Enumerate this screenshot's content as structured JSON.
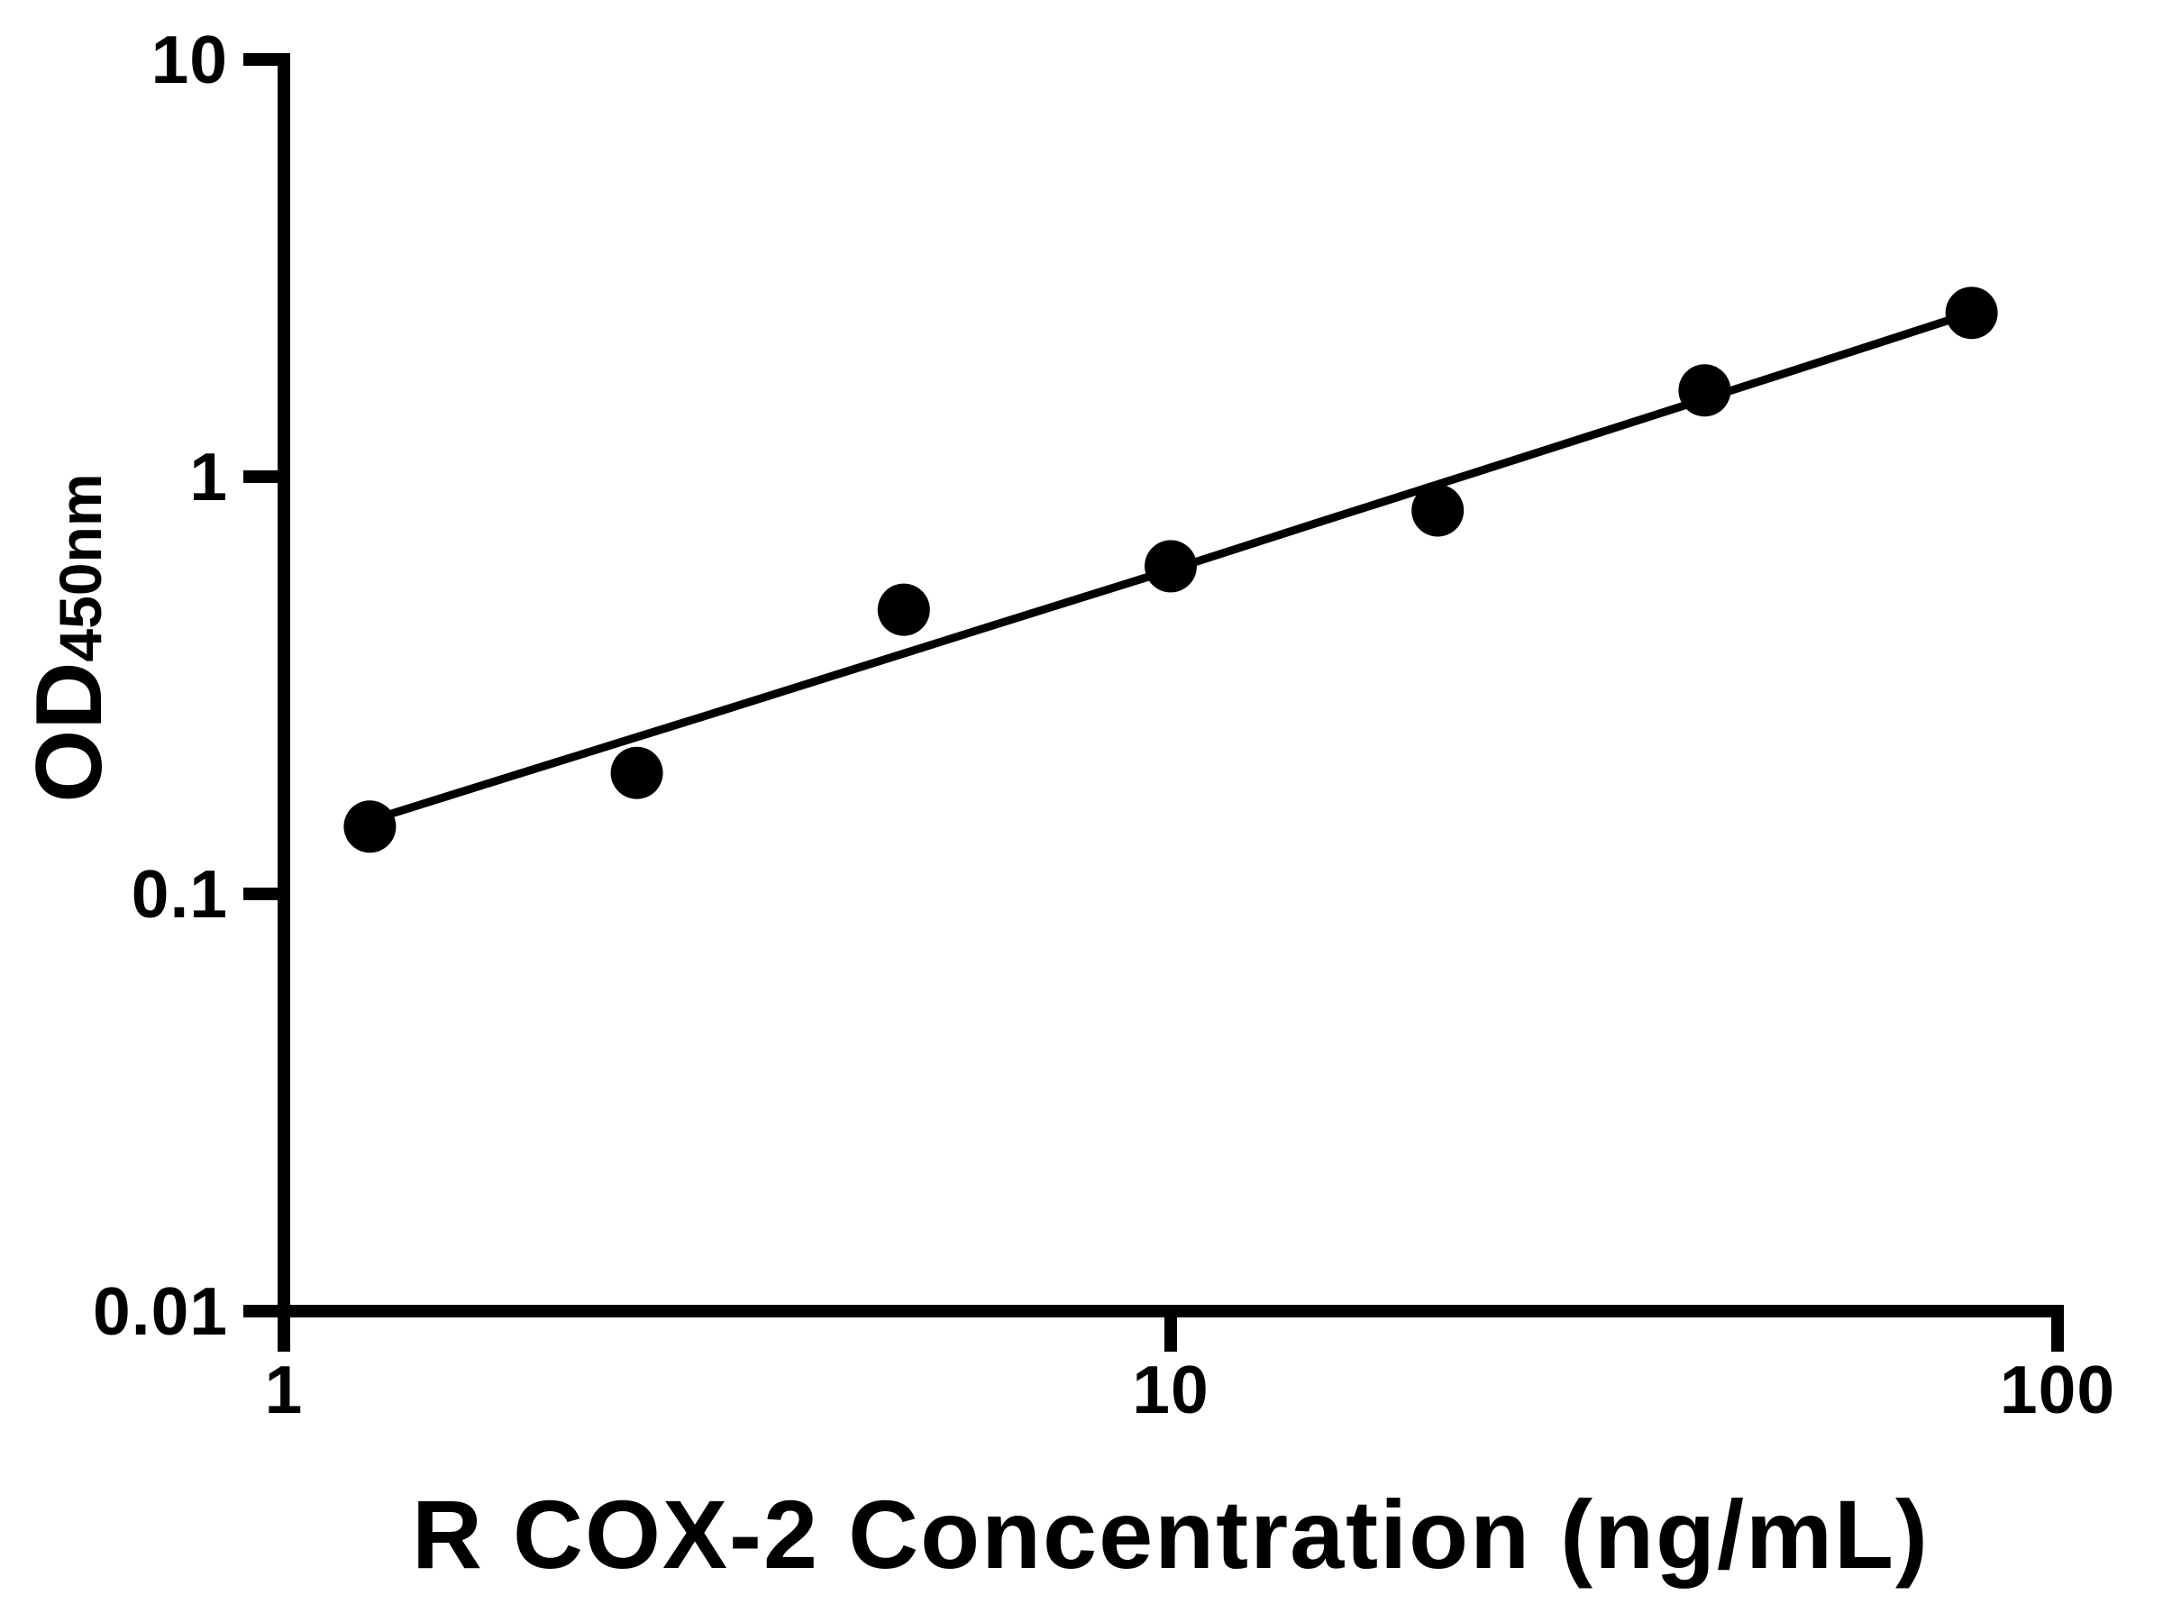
{
  "figure": {
    "background": "#ffffff"
  },
  "chart_data": {
    "type": "scatter",
    "title": "",
    "xlabel": "R COX-2 Concentration (ng/mL)",
    "ylabel_main": "OD",
    "ylabel_sub": "450nm",
    "x_scale": "log",
    "y_scale": "log",
    "xlim": [
      1,
      100
    ],
    "ylim": [
      0.01,
      10
    ],
    "grid": false,
    "legend": "none",
    "x_ticks": [
      {
        "value": 1,
        "label": "1"
      },
      {
        "value": 10,
        "label": "10"
      },
      {
        "value": 100,
        "label": "100"
      }
    ],
    "y_ticks": [
      {
        "value": 10,
        "label": "10"
      },
      {
        "value": 1,
        "label": "1"
      },
      {
        "value": 0.1,
        "label": "0.1"
      },
      {
        "value": 0.01,
        "label": "0.01"
      }
    ],
    "series": [
      {
        "name": "standard-points",
        "type": "scatter",
        "marker": "circle",
        "color": "#000000",
        "points": [
          [
            1.25,
            0.145
          ],
          [
            2.5,
            0.195
          ],
          [
            5,
            0.48
          ],
          [
            10,
            0.61
          ],
          [
            20,
            0.83
          ],
          [
            40,
            1.61
          ],
          [
            80,
            2.47
          ]
        ]
      },
      {
        "name": "fit-curve",
        "type": "line",
        "color": "#000000",
        "points": [
          [
            1.25,
            0.15
          ],
          [
            2,
            0.205
          ],
          [
            3,
            0.268
          ],
          [
            5,
            0.377
          ],
          [
            7,
            0.472
          ],
          [
            10,
            0.598
          ],
          [
            15,
            0.789
          ],
          [
            20,
            0.958
          ],
          [
            30,
            1.262
          ],
          [
            40,
            1.535
          ],
          [
            60,
            2.026
          ],
          [
            80,
            2.47
          ]
        ]
      }
    ],
    "colors": {
      "axis": "#000000",
      "marker": "#000000",
      "line": "#000000",
      "background": "#ffffff"
    }
  }
}
